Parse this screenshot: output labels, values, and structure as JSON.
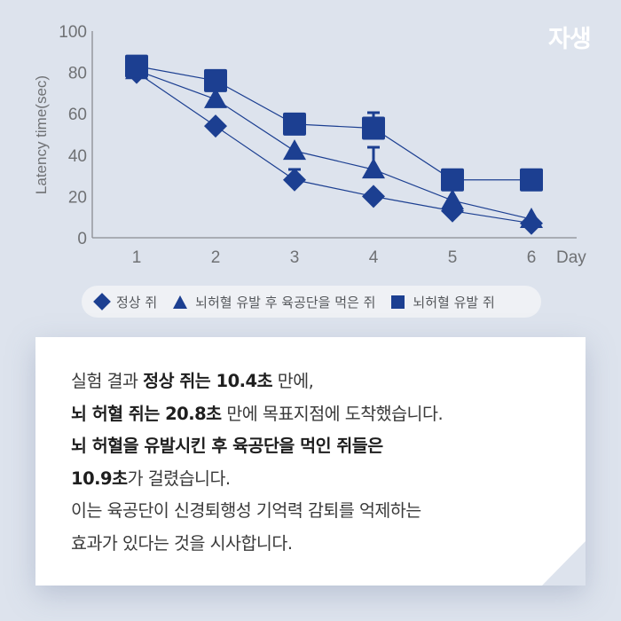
{
  "logo": {
    "text": "자생"
  },
  "chart_data": {
    "type": "line",
    "title": "",
    "xlabel": "Day",
    "ylabel": "Latency time(sec)",
    "x": [
      1,
      2,
      3,
      4,
      5,
      6
    ],
    "ylim": [
      0,
      100
    ],
    "yticks": [
      0,
      20,
      40,
      60,
      80,
      100
    ],
    "xticks": [
      "1",
      "2",
      "3",
      "4",
      "5",
      "6"
    ],
    "grid": false,
    "legend_position": "bottom",
    "series": [
      {
        "name": "정상 쥐",
        "marker": "diamond",
        "values": [
          80,
          54,
          28,
          20,
          13,
          7
        ]
      },
      {
        "name": "뇌허혈 유발 후 육공단을 먹은 쥐",
        "marker": "triangle",
        "values": [
          81,
          67,
          42,
          33,
          18,
          9
        ]
      },
      {
        "name": "뇌허혈 유발 쥐",
        "marker": "square",
        "values": [
          83,
          76,
          55,
          53,
          28,
          28
        ]
      }
    ],
    "color": "#1c3f91"
  },
  "legend": {
    "items": [
      {
        "label": "정상 쥐",
        "marker": "diamond"
      },
      {
        "label": "뇌허혈 유발 후 육공단을 먹은 쥐",
        "marker": "triangle"
      },
      {
        "label": "뇌허혈 유발 쥐",
        "marker": "square"
      }
    ]
  },
  "card": {
    "lines": [
      [
        {
          "t": "실험 결과 ",
          "b": false
        },
        {
          "t": "정상 쥐는 10.4초",
          "b": true
        },
        {
          "t": " 만에,",
          "b": false
        }
      ],
      [
        {
          "t": "뇌 허혈 쥐는 20.8초",
          "b": true
        },
        {
          "t": " 만에 목표지점에 도착했습니다.",
          "b": false
        }
      ],
      [
        {
          "t": "뇌 허혈을 유발시킨 후 육공단을 먹인 쥐들은",
          "b": true
        }
      ],
      [
        {
          "t": "10.9초",
          "b": true
        },
        {
          "t": "가 걸렸습니다.",
          "b": false
        }
      ],
      [
        {
          "t": "이는 육공단이 신경퇴행성 기억력 감퇴를 억제하는",
          "b": false
        }
      ],
      [
        {
          "t": "효과가 있다는 것을 시사합니다.",
          "b": false
        }
      ]
    ]
  }
}
